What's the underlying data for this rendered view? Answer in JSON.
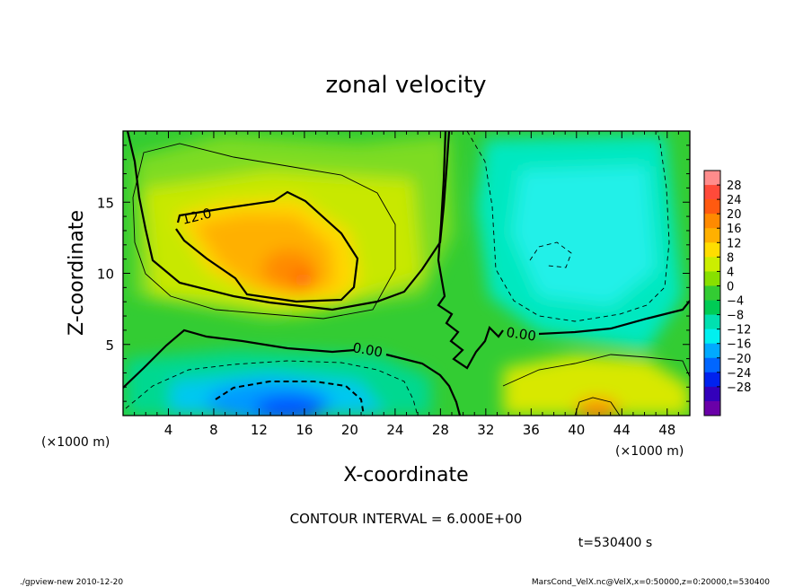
{
  "chart_data": {
    "type": "heatmap",
    "title": "zonal velocity",
    "xlabel": "X-coordinate",
    "ylabel": "Z-coordinate",
    "x_unit": "(×1000 m)",
    "y_unit": "(×1000 m)",
    "xlim": [
      0,
      50
    ],
    "ylim": [
      0,
      20
    ],
    "x_ticks": [
      4,
      8,
      12,
      16,
      20,
      24,
      28,
      32,
      36,
      40,
      44,
      48
    ],
    "y_ticks": [
      5,
      10,
      15
    ],
    "colorbar": {
      "labels": [
        "28",
        "24",
        "20",
        "16",
        "12",
        "8",
        "4",
        "0",
        "−4",
        "−8",
        "−12",
        "−16",
        "−20",
        "−24",
        "−28"
      ],
      "colors": [
        "#ff8c8c",
        "#ff4a3a",
        "#ff5a10",
        "#ff8a00",
        "#ffb000",
        "#ffdd00",
        "#ccee00",
        "#88e000",
        "#33cc33",
        "#00cc55",
        "#00e0b0",
        "#00f0f0",
        "#00aaff",
        "#0066ff",
        "#0022ee",
        "#3300bb",
        "#6a00a8"
      ]
    },
    "contour_interval": "CONTOUR INTERVAL = 6.000E+00",
    "contour_labels": [
      "12.0",
      "0.00",
      "0.00"
    ],
    "time_label": "t=530400 s"
  },
  "footer": {
    "left": "./gpview-new   2010-12-20",
    "right": "MarsCond_VelX.nc@VelX,x=0:50000,z=0:20000,t=530400"
  }
}
